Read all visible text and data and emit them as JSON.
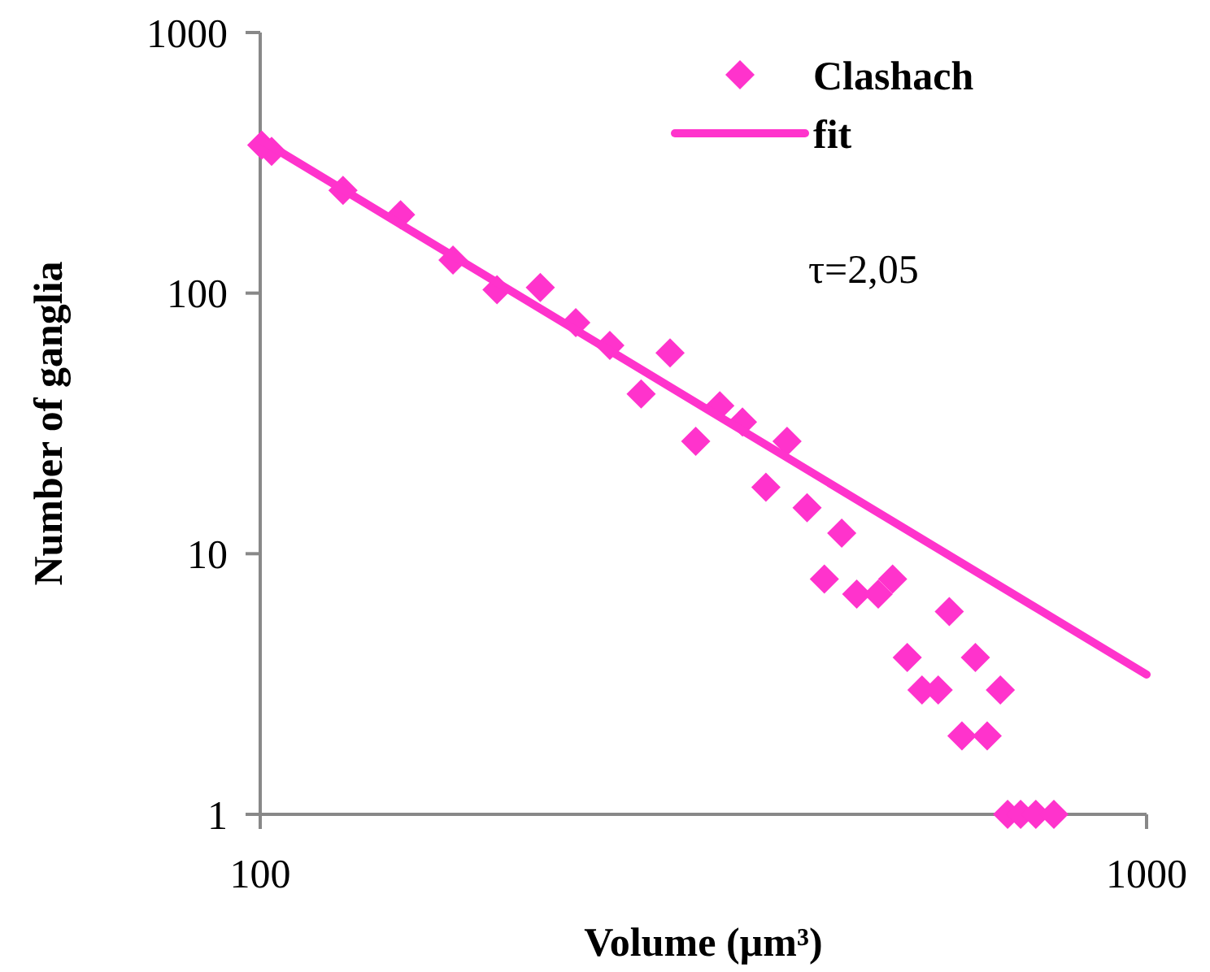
{
  "chart_data": {
    "type": "scatter",
    "xlabel": "Volume (µm³)",
    "ylabel": "Number of ganglia",
    "log": "xy",
    "xlim": [
      100,
      1000
    ],
    "xticks": [
      100,
      1000
    ],
    "ylim": [
      1,
      1000
    ],
    "yticks": [
      1,
      10,
      100,
      1000
    ],
    "legend": "top right",
    "annotations": [
      "τ=2,05"
    ],
    "series": [
      {
        "name": "Clashach",
        "color": "#ff33cc",
        "marker": "diamond",
        "x": [
          100.4,
          103,
          124,
          144,
          165,
          185,
          207,
          227,
          248,
          269,
          290,
          310,
          330,
          350,
          372,
          393,
          414,
          433,
          453,
          471,
          498,
          517,
          537,
          558,
          582,
          599,
          619,
          641,
          661,
          684,
          697,
          721,
          750,
          786
        ],
        "values": [
          370,
          350,
          248,
          200,
          134,
          103,
          105,
          77,
          63,
          41,
          59,
          27,
          37,
          32,
          18,
          27,
          15,
          8,
          12,
          7,
          7,
          8,
          4,
          3,
          3,
          6,
          2,
          4,
          2,
          3,
          1,
          1,
          1,
          1
        ]
      },
      {
        "name": "fit",
        "type": "line",
        "color": "#ff33cc",
        "line_style": "solid",
        "marker": "none",
        "x": [
          100,
          1000
        ],
        "values": [
          388,
          3.44
        ]
      }
    ]
  }
}
